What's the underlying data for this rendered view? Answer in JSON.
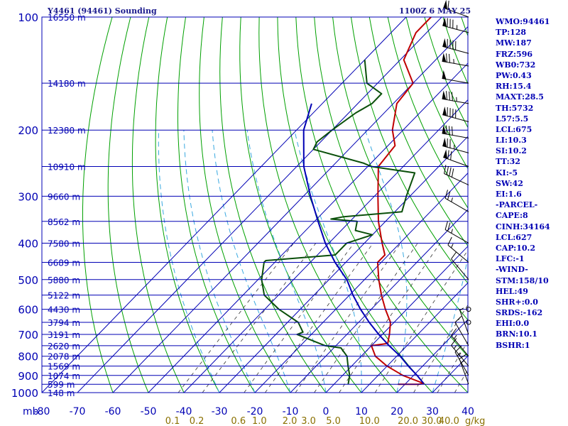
{
  "header": {
    "station": "Y4461 (94461) Sounding",
    "time": "1100Z  6 MAY 25"
  },
  "chart_data": {
    "type": "skew-t",
    "y_label": "mb",
    "pressure_ticks": [
      100,
      200,
      300,
      400,
      500,
      600,
      700,
      800,
      900,
      1000
    ],
    "temperature_ticks": [
      -80,
      -70,
      -60,
      -50,
      -40,
      -30,
      -20,
      -10,
      0,
      10,
      20,
      30,
      40
    ],
    "temperature_range": [
      -80,
      40
    ],
    "mixing_ratio_ticks": [
      "0.1",
      "0.2",
      "0.6",
      "1.0",
      "2.0",
      "3.0",
      "5.0",
      "10.0",
      "20.0",
      "30.0",
      "40.0"
    ],
    "mixing_ratio_unit": "g/kg",
    "height_ticks": [
      {
        "p": 100,
        "label": "16550 m"
      },
      {
        "p": 150,
        "label": "14180 m"
      },
      {
        "p": 200,
        "label": "12380 m"
      },
      {
        "p": 250,
        "label": "10910 m"
      },
      {
        "p": 300,
        "label": "9660 m"
      },
      {
        "p": 350,
        "label": "8562 m"
      },
      {
        "p": 400,
        "label": "7580 m"
      },
      {
        "p": 450,
        "label": "6689 m"
      },
      {
        "p": 500,
        "label": "5880 m"
      },
      {
        "p": 550,
        "label": "5122 m"
      },
      {
        "p": 600,
        "label": "4430 m"
      },
      {
        "p": 650,
        "label": "3794 m"
      },
      {
        "p": 700,
        "label": "3191 m"
      },
      {
        "p": 750,
        "label": "2620 m"
      },
      {
        "p": 800,
        "label": "2078 m"
      },
      {
        "p": 850,
        "label": "1569 m"
      },
      {
        "p": 900,
        "label": "1074 m"
      },
      {
        "p": 950,
        "label": "599 m"
      },
      {
        "p": 1000,
        "label": "148 m"
      }
    ],
    "series": [
      {
        "key": "temperature",
        "color": "#c00000",
        "points": [
          [
            950,
            24
          ],
          [
            945,
            25
          ],
          [
            900,
            17
          ],
          [
            850,
            10
          ],
          [
            800,
            4
          ],
          [
            750,
            0
          ],
          [
            740,
            4
          ],
          [
            700,
            2
          ],
          [
            650,
            -1
          ],
          [
            600,
            -6
          ],
          [
            550,
            -11
          ],
          [
            500,
            -16
          ],
          [
            450,
            -21
          ],
          [
            445,
            -21
          ],
          [
            430,
            -21
          ],
          [
            400,
            -25
          ],
          [
            350,
            -32
          ],
          [
            300,
            -39
          ],
          [
            250,
            -47
          ],
          [
            220,
            -48
          ],
          [
            200,
            -53
          ],
          [
            170,
            -59
          ],
          [
            150,
            -60
          ],
          [
            130,
            -69
          ],
          [
            110,
            -73
          ],
          [
            100,
            -73
          ]
        ]
      },
      {
        "key": "dewpoint",
        "color": "#0a4f0a",
        "points": [
          [
            950,
            4
          ],
          [
            900,
            2
          ],
          [
            850,
            -1
          ],
          [
            800,
            -4
          ],
          [
            760,
            -8
          ],
          [
            750,
            -13
          ],
          [
            700,
            -24
          ],
          [
            690,
            -23
          ],
          [
            650,
            -27
          ],
          [
            600,
            -36
          ],
          [
            550,
            -44
          ],
          [
            500,
            -49
          ],
          [
            450,
            -53
          ],
          [
            445,
            -53
          ],
          [
            430,
            -35
          ],
          [
            400,
            -35
          ],
          [
            380,
            -30
          ],
          [
            370,
            -36
          ],
          [
            350,
            -38
          ],
          [
            345,
            -46
          ],
          [
            340,
            -43
          ],
          [
            330,
            -28
          ],
          [
            300,
            -31
          ],
          [
            260,
            -35
          ],
          [
            250,
            -49
          ],
          [
            245,
            -52
          ],
          [
            225,
            -70
          ],
          [
            215,
            -71
          ],
          [
            200,
            -70
          ],
          [
            180,
            -68
          ],
          [
            170,
            -66
          ],
          [
            160,
            -66
          ],
          [
            150,
            -73
          ],
          [
            130,
            -80
          ]
        ]
      },
      {
        "key": "parcel",
        "color": "#0000b4",
        "points": [
          [
            945,
            25
          ],
          [
            900,
            21
          ],
          [
            850,
            16
          ],
          [
            800,
            11
          ],
          [
            750,
            5
          ],
          [
            700,
            -1
          ],
          [
            650,
            -7
          ],
          [
            600,
            -13
          ],
          [
            550,
            -19
          ],
          [
            500,
            -25
          ],
          [
            450,
            -33
          ],
          [
            400,
            -41
          ],
          [
            350,
            -49
          ],
          [
            300,
            -58
          ],
          [
            250,
            -68
          ],
          [
            200,
            -78
          ],
          [
            170,
            -83
          ]
        ]
      }
    ],
    "indices": [
      "WMO:94461",
      "TP:128",
      "MW:187",
      "FRZ:596",
      "WB0:732",
      "PW:0.43",
      "RH:15.4",
      "MAXT:28.5",
      "TH:5732",
      "L57:5.5",
      "LCL:675",
      "LI:10.3",
      "SI:10.2",
      "TT:32",
      "KI:-5",
      "SW:42",
      "EI:1.6",
      "-PARCEL-",
      "CAPE:8",
      "CINH:34164",
      "LCL:627",
      "CAP:10.2",
      "LFC:-1",
      "-WIND-",
      "STM:158/10",
      "HEL:49",
      "SHR+:0.0",
      "SRDS:-162",
      "EHI:0.0",
      "BRN:10.1",
      "BSHR:1"
    ],
    "wind_barbs": [
      {
        "p": 100,
        "dir": 290,
        "spd": 60
      },
      {
        "p": 110,
        "dir": 285,
        "spd": 85
      },
      {
        "p": 125,
        "dir": 285,
        "spd": 90
      },
      {
        "p": 135,
        "dir": 280,
        "spd": 75
      },
      {
        "p": 150,
        "dir": 280,
        "spd": 50
      },
      {
        "p": 170,
        "dir": 280,
        "spd": 85
      },
      {
        "p": 190,
        "dir": 285,
        "spd": 90
      },
      {
        "p": 210,
        "dir": 280,
        "spd": 80
      },
      {
        "p": 230,
        "dir": 285,
        "spd": 75
      },
      {
        "p": 250,
        "dir": 290,
        "spd": 70
      },
      {
        "p": 280,
        "dir": 295,
        "spd": 40
      },
      {
        "p": 330,
        "dir": 300,
        "spd": 25
      },
      {
        "p": 400,
        "dir": 300,
        "spd": 25
      },
      {
        "p": 450,
        "dir": 310,
        "spd": 15
      },
      {
        "p": 500,
        "dir": 320,
        "spd": 10
      },
      {
        "p": 600,
        "dir": 0,
        "spd": 0
      },
      {
        "p": 650,
        "dir": 0,
        "spd": 0
      },
      {
        "p": 700,
        "dir": 340,
        "spd": 5
      },
      {
        "p": 750,
        "dir": 330,
        "spd": 10
      },
      {
        "p": 800,
        "dir": 320,
        "spd": 15
      },
      {
        "p": 850,
        "dir": 320,
        "spd": 15
      },
      {
        "p": 900,
        "dir": 330,
        "spd": 15
      },
      {
        "p": 950,
        "dir": 340,
        "spd": 15
      }
    ]
  }
}
